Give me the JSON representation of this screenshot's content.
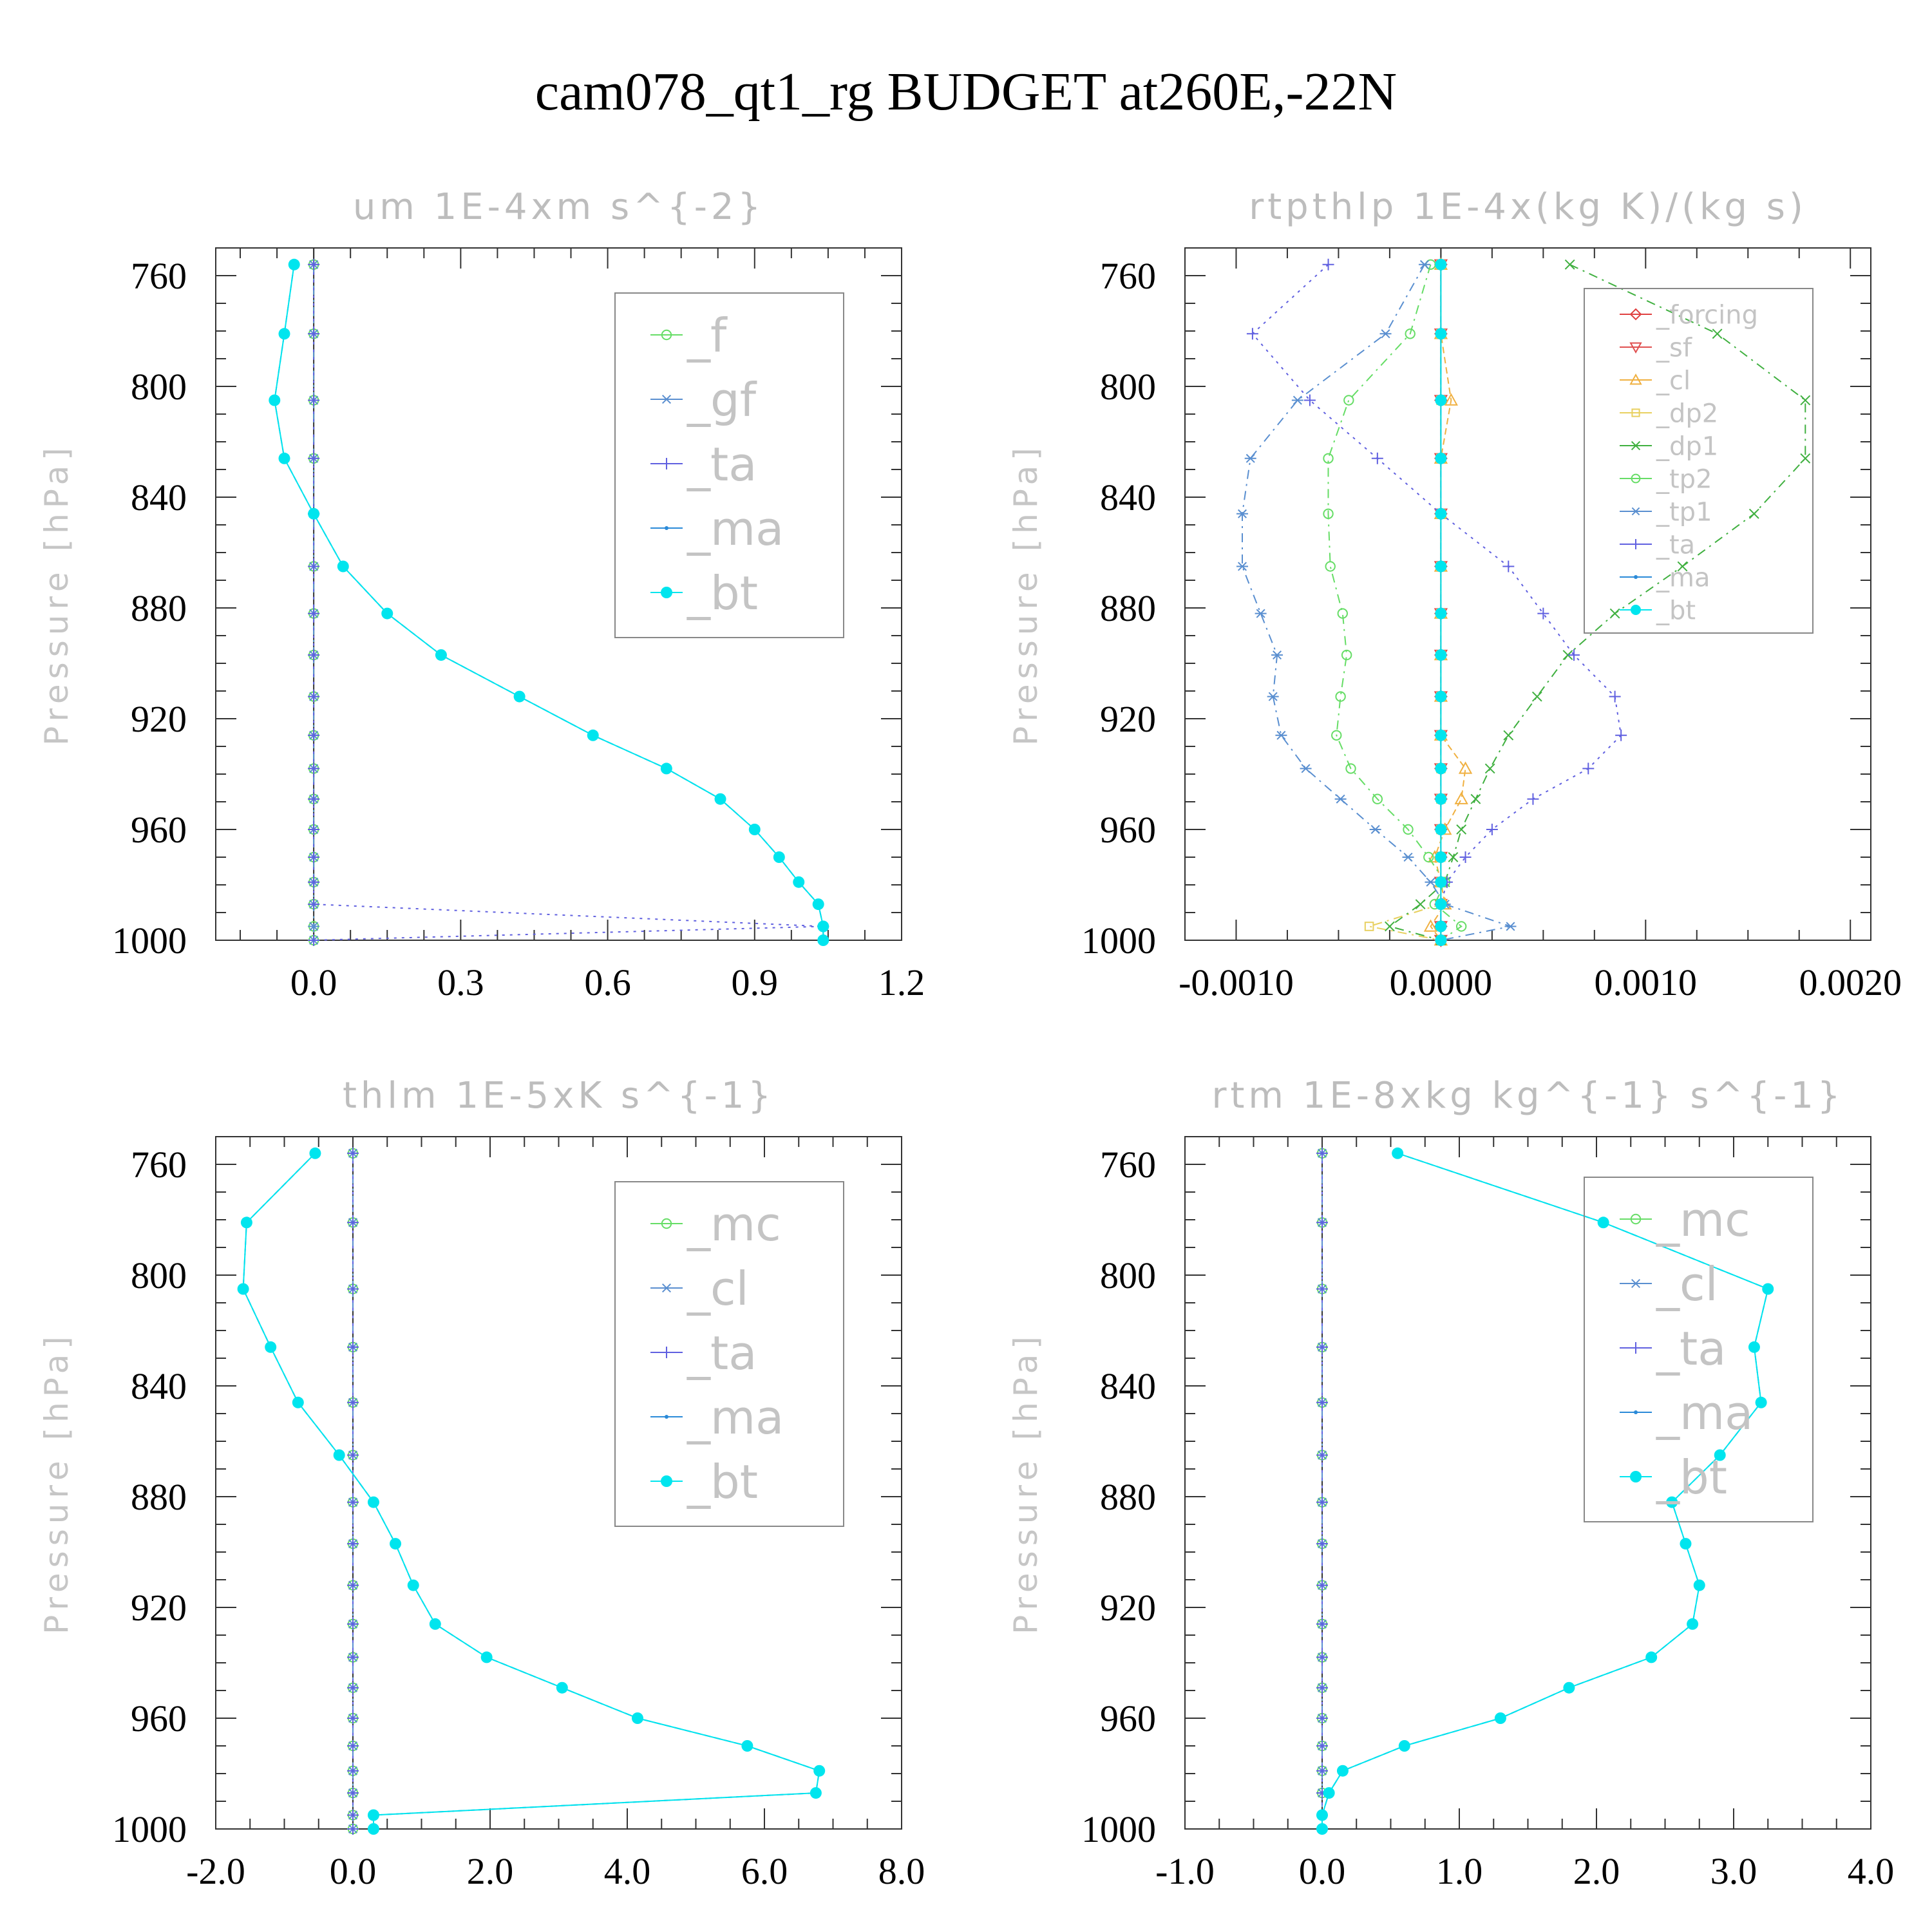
{
  "figure": {
    "title": "cam078_qt1_rg  BUDGET at260E,-22N"
  },
  "chart_data": [
    {
      "type": "line",
      "title": "um   1E-4xm s^{-2}",
      "ylabel": "Pressure [hPa]",
      "xlim": [
        -0.2,
        1.2
      ],
      "ylim": [
        1000,
        750
      ],
      "xticks": [
        "0.0",
        "0.3",
        "0.6",
        "0.9",
        "1.2"
      ],
      "xtick_values": [
        0,
        0.3,
        0.6,
        0.9,
        1.2
      ],
      "yticks": [
        "760",
        "800",
        "840",
        "880",
        "920",
        "960",
        "1000"
      ],
      "ytick_values": [
        760,
        800,
        840,
        880,
        920,
        960,
        1000
      ],
      "legend_position": "top-right",
      "levels": [
        756,
        781,
        805,
        826,
        846,
        865,
        882,
        897,
        912,
        926,
        938,
        949,
        960,
        970,
        979,
        987,
        995,
        1000
      ],
      "series": [
        {
          "name": "_f",
          "color": "#66dd66",
          "marker": "circle",
          "dash": "14,8,3,8",
          "values": [
            0,
            0,
            0,
            0,
            0,
            0,
            0,
            0,
            0,
            0,
            0,
            0,
            0,
            0,
            0,
            0,
            0,
            0
          ]
        },
        {
          "name": "_gf",
          "color": "#5a8fd0",
          "marker": "asterisk",
          "dash": "14,8,3,8",
          "values": [
            0,
            0,
            0,
            0,
            0,
            0,
            0,
            0,
            0,
            0,
            0,
            0,
            0,
            0,
            0,
            0,
            0,
            0
          ]
        },
        {
          "name": "_ta",
          "color": "#6060e0",
          "marker": "plus",
          "dash": "4,8",
          "values": [
            0,
            0,
            0,
            0,
            0,
            0,
            0,
            0,
            0,
            0,
            0,
            0,
            0,
            0,
            0,
            0,
            1.04,
            0.0
          ]
        },
        {
          "name": "_ma",
          "color": "#2a8ad8",
          "marker": "dot",
          "dash": "10,6",
          "values": [
            -0.04,
            -0.06,
            -0.08,
            -0.06,
            0,
            0.06,
            0.15,
            0.26,
            0.42,
            0.57,
            0.72,
            0.83,
            0.9,
            0.95,
            0.99,
            1.03,
            1.04,
            1.04
          ]
        },
        {
          "name": "_bt",
          "color": "#00e5ee",
          "marker": "filled-circle",
          "dash": "",
          "values": [
            -0.04,
            -0.06,
            -0.08,
            -0.06,
            0,
            0.06,
            0.15,
            0.26,
            0.42,
            0.57,
            0.72,
            0.83,
            0.9,
            0.95,
            0.99,
            1.03,
            1.04,
            1.04
          ]
        }
      ]
    },
    {
      "type": "line",
      "title": "rtpthlp   1E-4x(kg K)/(kg s)",
      "ylabel": "Pressure [hPa]",
      "xlim": [
        -0.00125,
        0.0021
      ],
      "ylim": [
        1000,
        750
      ],
      "xticks": [
        "-0.0010",
        "0.0000",
        "0.0010",
        "0.0020"
      ],
      "xtick_values": [
        -0.001,
        0,
        0.001,
        0.002
      ],
      "yticks": [
        "760",
        "800",
        "840",
        "880",
        "920",
        "960",
        "1000"
      ],
      "ytick_values": [
        760,
        800,
        840,
        880,
        920,
        960,
        1000
      ],
      "legend_position": "top-right",
      "levels": [
        756,
        781,
        805,
        826,
        846,
        865,
        882,
        897,
        912,
        926,
        938,
        949,
        960,
        970,
        979,
        987,
        995,
        1000
      ],
      "series": [
        {
          "name": "_forcing",
          "color": "#e04040",
          "marker": "diamond",
          "dash": "",
          "values": [
            0,
            0,
            0,
            0,
            0,
            0,
            0,
            0,
            0,
            0,
            0,
            0,
            0,
            0,
            0,
            0,
            0,
            0
          ]
        },
        {
          "name": "_sf",
          "color": "#e05050",
          "marker": "triangle-down",
          "dash": "10,6",
          "values": [
            0,
            0,
            0,
            0,
            0,
            0,
            0,
            0,
            0,
            0,
            0,
            0,
            0,
            0,
            0,
            0,
            0,
            0
          ]
        },
        {
          "name": "_cl",
          "color": "#f0b040",
          "marker": "triangle-up",
          "dash": "10,6",
          "values": [
            0,
            0,
            5e-05,
            0,
            0,
            0,
            0,
            0,
            0,
            0,
            0.00012,
            0.0001,
            2e-05,
            -3e-05,
            0,
            2e-05,
            -5e-05,
            0
          ]
        },
        {
          "name": "_dp2",
          "color": "#e8d060",
          "marker": "square",
          "dash": "14,8,3,8",
          "values": [
            0,
            0,
            0,
            0,
            0,
            0,
            0,
            0,
            0,
            0,
            0,
            0,
            0,
            0,
            0,
            0,
            -0.00035,
            0
          ]
        },
        {
          "name": "_dp1",
          "color": "#40b040",
          "marker": "cross",
          "dash": "14,8,3,8",
          "values": [
            0.00063,
            0.00135,
            0.00178,
            0.00178,
            0.00153,
            0.00118,
            0.00085,
            0.00062,
            0.00047,
            0.00033,
            0.00024,
            0.00017,
            0.0001,
            6e-05,
            2e-05,
            -0.0001,
            -0.00025,
            0
          ]
        },
        {
          "name": "_tp2",
          "color": "#66dd66",
          "marker": "circle",
          "dash": "14,8,3,8",
          "values": [
            -5e-05,
            -0.00015,
            -0.00045,
            -0.00055,
            -0.00055,
            -0.00054,
            -0.00048,
            -0.00046,
            -0.00049,
            -0.00051,
            -0.00044,
            -0.00031,
            -0.00016,
            -6e-05,
            2e-05,
            -3e-05,
            0.0001,
            0
          ]
        },
        {
          "name": "_tp1",
          "color": "#5a8fd0",
          "marker": "asterisk",
          "dash": "14,8,3,8",
          "values": [
            -8e-05,
            -0.00027,
            -0.0007,
            -0.00093,
            -0.00097,
            -0.00097,
            -0.00088,
            -0.0008,
            -0.00082,
            -0.00078,
            -0.00066,
            -0.00049,
            -0.00032,
            -0.00016,
            -5e-05,
            2e-05,
            0.00034,
            0
          ]
        },
        {
          "name": "_ta",
          "color": "#6060e0",
          "marker": "plus",
          "dash": "4,8",
          "values": [
            -0.00055,
            -0.00092,
            -0.00064,
            -0.00031,
            0,
            0.00033,
            0.0005,
            0.00065,
            0.00085,
            0.00088,
            0.00072,
            0.00045,
            0.00025,
            0.00012,
            3e-05,
            0,
            0,
            0
          ]
        },
        {
          "name": "_ma",
          "color": "#2a8ad8",
          "marker": "dot",
          "dash": "10,6",
          "values": [
            0,
            0,
            0,
            0,
            0,
            0,
            0,
            0,
            0,
            0,
            0,
            0,
            0,
            0,
            0,
            0,
            0,
            0
          ]
        },
        {
          "name": "_bt",
          "color": "#00e5ee",
          "marker": "filled-circle",
          "dash": "",
          "values": [
            0,
            0,
            0,
            0,
            0,
            0,
            0,
            0,
            0,
            0,
            0,
            0,
            0,
            0,
            0,
            0,
            0,
            0
          ]
        }
      ]
    },
    {
      "type": "line",
      "title": "thlm   1E-5xK s^{-1}",
      "ylabel": "Pressure [hPa]",
      "xlim": [
        -2.0,
        8.0
      ],
      "ylim": [
        1000,
        750
      ],
      "xticks": [
        "-2.0",
        "0.0",
        "2.0",
        "4.0",
        "6.0",
        "8.0"
      ],
      "xtick_values": [
        -2,
        0,
        2,
        4,
        6,
        8
      ],
      "yticks": [
        "760",
        "800",
        "840",
        "880",
        "920",
        "960",
        "1000"
      ],
      "ytick_values": [
        760,
        800,
        840,
        880,
        920,
        960,
        1000
      ],
      "legend_position": "top-right",
      "levels": [
        756,
        781,
        805,
        826,
        846,
        865,
        882,
        897,
        912,
        926,
        938,
        949,
        960,
        970,
        979,
        987,
        995,
        1000
      ],
      "series": [
        {
          "name": "_mc",
          "color": "#66dd66",
          "marker": "circle",
          "dash": "14,8,3,8",
          "values": [
            0,
            0,
            0,
            0,
            0,
            0,
            0,
            0,
            0,
            0,
            0,
            0,
            0,
            0,
            0,
            0,
            0,
            0
          ]
        },
        {
          "name": "_cl",
          "color": "#5a8fd0",
          "marker": "asterisk",
          "dash": "14,8,3,8",
          "values": [
            0,
            0,
            0,
            0,
            0,
            0,
            0,
            0,
            0,
            0,
            0,
            0,
            0,
            0,
            0,
            0,
            0,
            0
          ]
        },
        {
          "name": "_ta",
          "color": "#6060e0",
          "marker": "plus",
          "dash": "4,8",
          "values": [
            0,
            0,
            0,
            0,
            0,
            0,
            0,
            0,
            0,
            0,
            0,
            0,
            0,
            0,
            0,
            0,
            0,
            0
          ]
        },
        {
          "name": "_ma",
          "color": "#2a8ad8",
          "marker": "dot",
          "dash": "10,6",
          "values": [
            -0.55,
            -1.55,
            -1.6,
            -1.2,
            -0.8,
            -0.2,
            0.3,
            0.62,
            0.88,
            1.2,
            1.95,
            3.05,
            4.15,
            5.75,
            6.8,
            6.75,
            0.3,
            0.3
          ]
        },
        {
          "name": "_bt",
          "color": "#00e5ee",
          "marker": "filled-circle",
          "dash": "",
          "values": [
            -0.55,
            -1.55,
            -1.6,
            -1.2,
            -0.8,
            -0.2,
            0.3,
            0.62,
            0.88,
            1.2,
            1.95,
            3.05,
            4.15,
            5.75,
            6.8,
            6.75,
            0.3,
            0.3
          ]
        }
      ]
    },
    {
      "type": "line",
      "title": "rtm   1E-8xkg kg^{-1} s^{-1}",
      "ylabel": "Pressure [hPa]",
      "xlim": [
        -1.0,
        4.0
      ],
      "ylim": [
        1000,
        750
      ],
      "xticks": [
        "-1.0",
        "0.0",
        "1.0",
        "2.0",
        "3.0",
        "4.0"
      ],
      "xtick_values": [
        -1,
        0,
        1,
        2,
        3,
        4
      ],
      "yticks": [
        "760",
        "800",
        "840",
        "880",
        "920",
        "960",
        "1000"
      ],
      "ytick_values": [
        760,
        800,
        840,
        880,
        920,
        960,
        1000
      ],
      "legend_position": "top-right",
      "levels": [
        756,
        781,
        805,
        826,
        846,
        865,
        882,
        897,
        912,
        926,
        938,
        949,
        960,
        970,
        979,
        987,
        995,
        1000
      ],
      "series": [
        {
          "name": "_mc",
          "color": "#66dd66",
          "marker": "circle",
          "dash": "14,8,3,8",
          "values": [
            0,
            0,
            0,
            0,
            0,
            0,
            0,
            0,
            0,
            0,
            0,
            0,
            0,
            0,
            0,
            0,
            0,
            0
          ]
        },
        {
          "name": "_cl",
          "color": "#5a8fd0",
          "marker": "asterisk",
          "dash": "14,8,3,8",
          "values": [
            0,
            0,
            0,
            0,
            0,
            0,
            0,
            0,
            0,
            0,
            0,
            0,
            0,
            0,
            0,
            0,
            0,
            0
          ]
        },
        {
          "name": "_ta",
          "color": "#6060e0",
          "marker": "plus",
          "dash": "4,8",
          "values": [
            0,
            0,
            0,
            0,
            0,
            0,
            0,
            0,
            0,
            0,
            0,
            0,
            0,
            0,
            0,
            0,
            0,
            0
          ]
        },
        {
          "name": "_ma",
          "color": "#2a8ad8",
          "marker": "dot",
          "dash": "10,6",
          "values": [
            0.55,
            2.05,
            3.25,
            3.15,
            3.2,
            2.9,
            2.55,
            2.65,
            2.75,
            2.7,
            2.4,
            1.8,
            1.3,
            0.6,
            0.15,
            0.05,
            0,
            0
          ]
        },
        {
          "name": "_bt",
          "color": "#00e5ee",
          "marker": "filled-circle",
          "dash": "",
          "values": [
            0.55,
            2.05,
            3.25,
            3.15,
            3.2,
            2.9,
            2.55,
            2.65,
            2.75,
            2.7,
            2.4,
            1.8,
            1.3,
            0.6,
            0.15,
            0.05,
            0,
            0
          ]
        }
      ]
    }
  ]
}
